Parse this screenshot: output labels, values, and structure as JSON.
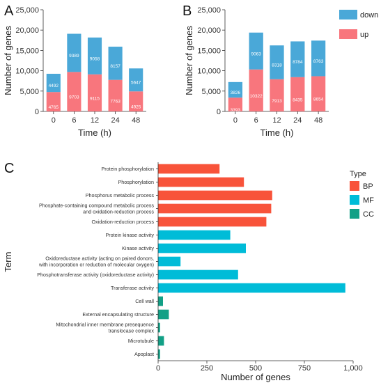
{
  "colors": {
    "down": "#4aa8d8",
    "up": "#f8767d",
    "BP": "#f8533a",
    "MF": "#00bcd8",
    "CC": "#12a086"
  },
  "chart_data": [
    {
      "type": "bar",
      "stacked": true,
      "panel": "A",
      "categories": [
        "0",
        "6",
        "12",
        "24",
        "48"
      ],
      "series": [
        {
          "name": "up",
          "values": [
            4765,
            9703,
            9115,
            7763,
            4925
          ]
        },
        {
          "name": "down",
          "values": [
            4492,
            9389,
            9058,
            8157,
            5647
          ]
        }
      ],
      "xlabel": "Time (h)",
      "ylabel": "Number of genes",
      "ylim": [
        0,
        25000
      ],
      "yticks": [
        "0",
        "5,000",
        "10,000",
        "15,000",
        "20,000",
        "25,000"
      ]
    },
    {
      "type": "bar",
      "stacked": true,
      "panel": "B",
      "categories": [
        "0",
        "6",
        "12",
        "24",
        "48"
      ],
      "series": [
        {
          "name": "up",
          "values": [
            3393,
            10322,
            7913,
            8435,
            8654
          ]
        },
        {
          "name": "down",
          "values": [
            3826,
            9063,
            8318,
            8784,
            8763
          ]
        }
      ],
      "xlabel": "Time (h)",
      "ylabel": "Number of genes",
      "ylim": [
        0,
        25000
      ],
      "yticks": [
        "0",
        "5,000",
        "10,000",
        "15,000",
        "20,000",
        "25,000"
      ],
      "legend": {
        "position": "top-right",
        "entries": [
          "down",
          "up"
        ]
      }
    },
    {
      "type": "bar",
      "orientation": "horizontal",
      "panel": "C",
      "terms": [
        {
          "label": [
            "Protein phosphorylation"
          ],
          "value": 315,
          "type": "BP"
        },
        {
          "label": [
            "Phosphorylation"
          ],
          "value": 440,
          "type": "BP"
        },
        {
          "label": [
            "Phosphorus metabolic process"
          ],
          "value": 585,
          "type": "BP"
        },
        {
          "label": [
            "Phosphate-containing compound metabolic process",
            "and oxidation-reduction process"
          ],
          "value": 580,
          "type": "BP"
        },
        {
          "label": [
            "Oxidation-reduction process"
          ],
          "value": 555,
          "type": "BP"
        },
        {
          "label": [
            "Protein kinase activity"
          ],
          "value": 370,
          "type": "MF"
        },
        {
          "label": [
            "Kinase activity"
          ],
          "value": 450,
          "type": "MF"
        },
        {
          "label": [
            "Oxidoreductase activity (acting on paired donors,",
            "with incorporation or reduction of molecular oxygen)"
          ],
          "value": 115,
          "type": "MF"
        },
        {
          "label": [
            "Phosphotransferase activity (oxidoreductase activity)"
          ],
          "value": 410,
          "type": "MF"
        },
        {
          "label": [
            "Transferase activity"
          ],
          "value": 960,
          "type": "MF"
        },
        {
          "label": [
            "Cell wall"
          ],
          "value": 25,
          "type": "CC"
        },
        {
          "label": [
            "External encapsulating structure"
          ],
          "value": 55,
          "type": "CC"
        },
        {
          "label": [
            "Mitochondrial inner membrane presequence",
            "translocase complex"
          ],
          "value": 10,
          "type": "CC"
        },
        {
          "label": [
            "Microtubule"
          ],
          "value": 30,
          "type": "CC"
        },
        {
          "label": [
            "Apoplast"
          ],
          "value": 10,
          "type": "CC"
        }
      ],
      "xlabel": "Number of genes",
      "ylabel": "Term",
      "xlim": [
        0,
        1000
      ],
      "xticks": [
        "0",
        "250",
        "500",
        "750",
        "1,000"
      ],
      "legend": {
        "title": "Type",
        "position": "right",
        "entries": [
          "BP",
          "MF",
          "CC"
        ]
      }
    }
  ]
}
